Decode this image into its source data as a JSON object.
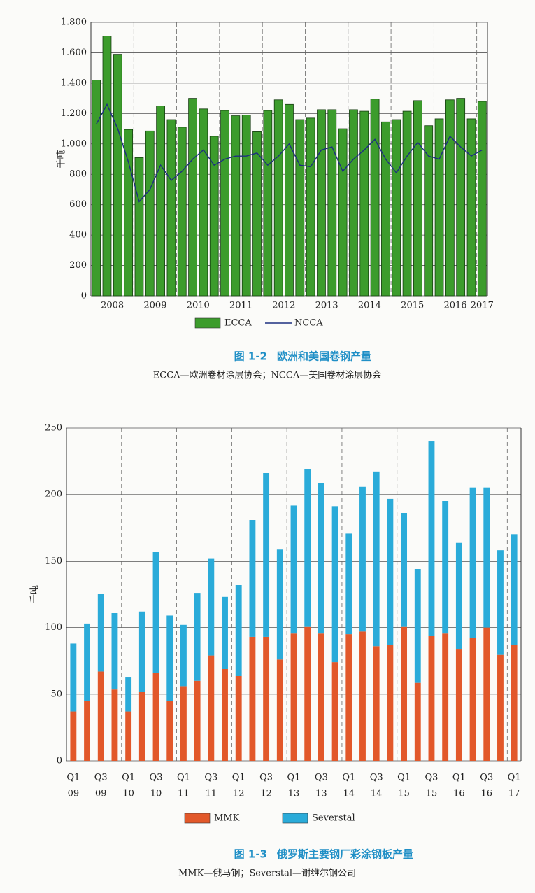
{
  "chart_data": [
    {
      "type": "bar",
      "figure_label": "图 1-2",
      "title": "欧洲和美国卷钢产量",
      "subtitle": "ECCA—欧洲卷材涂层协会；NCCA—美国卷材涂层协会",
      "ylabel": "千吨",
      "categories": [
        null,
        "2008",
        null,
        null,
        null,
        "2009",
        null,
        null,
        null,
        "2010",
        null,
        null,
        null,
        "2011",
        null,
        null,
        null,
        "2012",
        null,
        null,
        null,
        "2013",
        null,
        null,
        null,
        "2014",
        null,
        null,
        null,
        "2015",
        null,
        null,
        null,
        "2016",
        null,
        null,
        "2017"
      ],
      "series": [
        {
          "name": "ECCA",
          "color": "#3c9c2c",
          "values": [
            1420,
            1710,
            1590,
            1095,
            910,
            1085,
            1250,
            1160,
            1110,
            1300,
            1230,
            1050,
            1220,
            1185,
            1190,
            1080,
            1220,
            1290,
            1260,
            1160,
            1170,
            1225,
            1225,
            1100,
            1225,
            1215,
            1295,
            1145,
            1160,
            1215,
            1285,
            1120,
            1165,
            1290,
            1300,
            1165,
            1280
          ]
        },
        {
          "name": "NCCA",
          "type": "line",
          "color": "#1c2f80",
          "values": [
            1130,
            1260,
            1100,
            880,
            620,
            700,
            860,
            760,
            820,
            900,
            960,
            860,
            900,
            920,
            920,
            940,
            860,
            920,
            1000,
            860,
            850,
            960,
            980,
            820,
            900,
            960,
            1030,
            900,
            810,
            920,
            1010,
            920,
            900,
            1050,
            980,
            920,
            960
          ]
        }
      ],
      "ylim": [
        0,
        1800
      ],
      "yticks": [
        0,
        200,
        400,
        600,
        800,
        {
          "value": 1000,
          "label": "1.000"
        },
        {
          "value": 1200,
          "label": "1.200"
        },
        {
          "value": 1400,
          "label": "1.400"
        },
        {
          "value": 1600,
          "label": "1.600"
        },
        {
          "value": 1800,
          "label": "1.800"
        }
      ],
      "grid": true
    },
    {
      "type": "bar",
      "stacked": true,
      "figure_label": "图 1-3",
      "title": "俄罗斯主要钢厂彩涂钢板产量",
      "subtitle": "MMK—俄马钢；Severstal—谢维尔钢公司",
      "ylabel": "千吨",
      "categories": [
        [
          "Q1",
          "09"
        ],
        null,
        [
          "Q3",
          "09"
        ],
        null,
        [
          "Q1",
          "10"
        ],
        null,
        [
          "Q3",
          "10"
        ],
        null,
        [
          "Q1",
          "11"
        ],
        null,
        [
          "Q3",
          "11"
        ],
        null,
        [
          "Q1",
          "12"
        ],
        null,
        [
          "Q3",
          "12"
        ],
        null,
        [
          "Q1",
          "13"
        ],
        null,
        [
          "Q3",
          "13"
        ],
        null,
        [
          "Q1",
          "14"
        ],
        null,
        [
          "Q3",
          "14"
        ],
        null,
        [
          "Q1",
          "15"
        ],
        null,
        [
          "Q3",
          "15"
        ],
        null,
        [
          "Q1",
          "16"
        ],
        null,
        [
          "Q3",
          "16"
        ],
        null,
        [
          "Q1",
          "17"
        ]
      ],
      "series": [
        {
          "name": "MMK",
          "color": "#e2582a",
          "values": [
            37,
            45,
            67,
            54,
            37,
            52,
            66,
            45,
            56,
            60,
            79,
            69,
            64,
            93,
            93,
            76,
            96,
            101,
            96,
            74,
            95,
            97,
            86,
            87,
            101,
            59,
            94,
            96,
            84,
            92,
            100,
            80,
            87
          ]
        },
        {
          "name": "Severstal",
          "color": "#2aabd9",
          "values": [
            51,
            58,
            58,
            57,
            26,
            60,
            91,
            64,
            46,
            66,
            73,
            54,
            68,
            88,
            123,
            83,
            96,
            118,
            113,
            117,
            76,
            109,
            131,
            110,
            85,
            85,
            146,
            99,
            80,
            113,
            105,
            78,
            83
          ]
        }
      ],
      "ylim": [
        0,
        250
      ],
      "yticks": [
        0,
        50,
        100,
        150,
        200,
        250
      ],
      "grid": true
    }
  ]
}
